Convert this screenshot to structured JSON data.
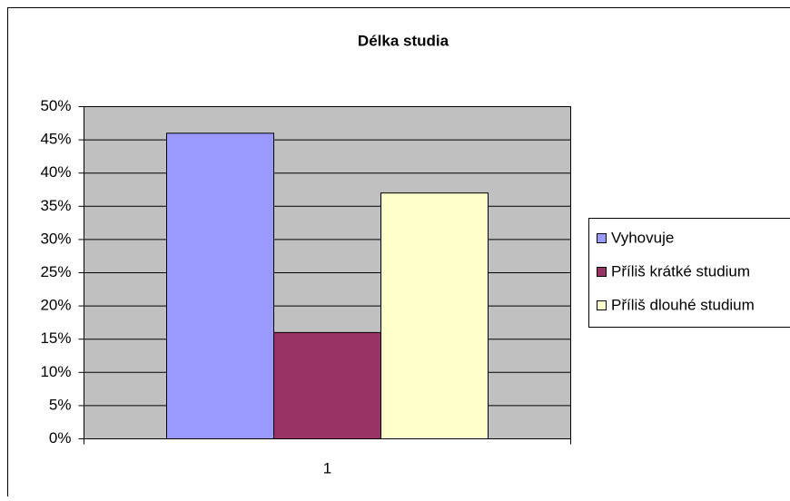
{
  "chart_data": {
    "type": "bar",
    "title": "Délka studia",
    "categories": [
      "1"
    ],
    "series": [
      {
        "name": "Vyhovuje",
        "color": "#9999ff",
        "values": [
          46
        ]
      },
      {
        "name": "Příliš krátké studium",
        "color": "#993366",
        "values": [
          16
        ]
      },
      {
        "name": "Příliš dlouhé studium",
        "color": "#ffffcc",
        "values": [
          37
        ]
      }
    ],
    "ylim": [
      0,
      50
    ],
    "yticks": [
      {
        "value": 0,
        "label": "0%"
      },
      {
        "value": 5,
        "label": "5%"
      },
      {
        "value": 10,
        "label": "10%"
      },
      {
        "value": 15,
        "label": "15%"
      },
      {
        "value": 20,
        "label": "20%"
      },
      {
        "value": 25,
        "label": "25%"
      },
      {
        "value": 30,
        "label": "30%"
      },
      {
        "value": 35,
        "label": "35%"
      },
      {
        "value": 40,
        "label": "40%"
      },
      {
        "value": 45,
        "label": "45%"
      },
      {
        "value": 50,
        "label": "50%"
      }
    ],
    "grid": true,
    "legend": "right",
    "plot_background": "#c0c0c0"
  }
}
